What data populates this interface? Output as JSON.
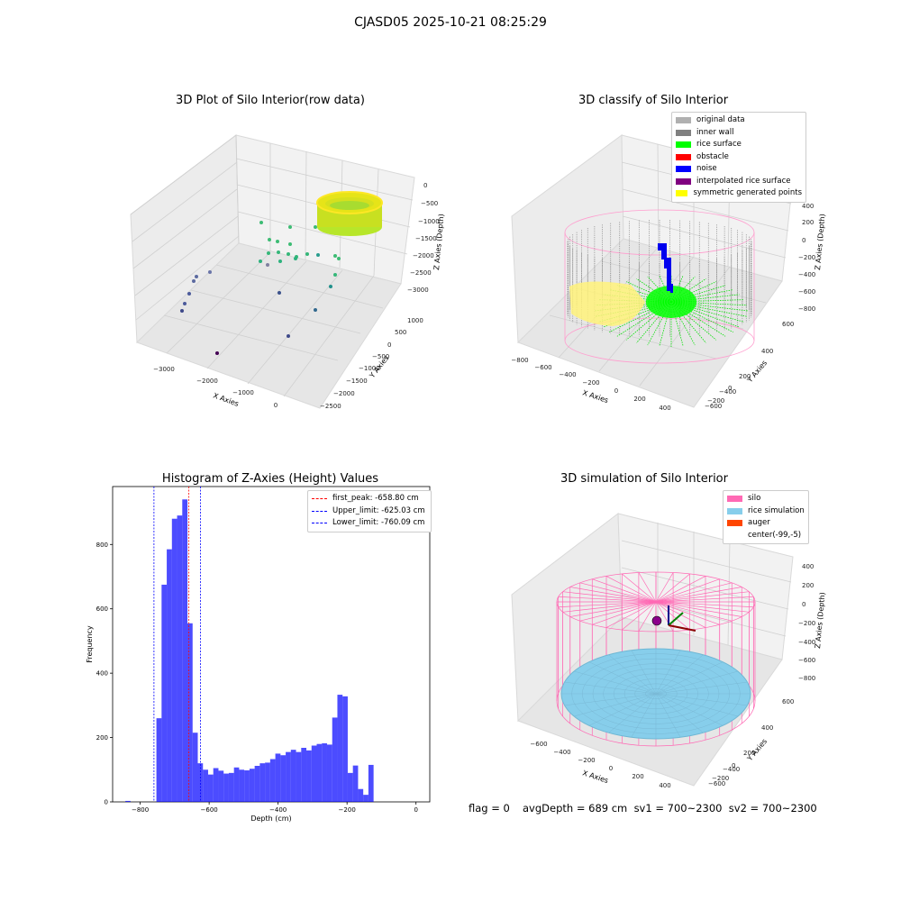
{
  "figure_title": "CJASD05 2025-10-21 08:25:29",
  "panel1": {
    "title": "3D Plot of Silo Interior(row data)",
    "xlabel": "X Axies",
    "ylabel": "Y Axies",
    "zlabel": "Z Axies (Depth)",
    "xticks": [
      "−3000",
      "−2000",
      "−1000",
      "0"
    ],
    "yticks": [
      "1000",
      "500",
      "0",
      "−500",
      "−1000",
      "−1500",
      "−2000",
      "−2500"
    ],
    "zticks": [
      "0",
      "−500",
      "−1000",
      "−1500",
      "−2000",
      "−2500",
      "−3000"
    ]
  },
  "panel2": {
    "title": "3D classify of Silo Interior",
    "xlabel": "X Axies",
    "ylabel": "Y Axies",
    "zlabel": "Z Axies (Depth)",
    "xticks": [
      "−800",
      "−600",
      "−400",
      "−200",
      "0",
      "200",
      "400"
    ],
    "yticks": [
      "600",
      "400",
      "200",
      "0",
      "−200",
      "−400",
      "−600"
    ],
    "zticks": [
      "400",
      "200",
      "0",
      "−200",
      "−400",
      "−600",
      "−800"
    ],
    "legend": [
      {
        "label": "original data",
        "color": "#b0b0b0"
      },
      {
        "label": "inner wall",
        "color": "#808080"
      },
      {
        "label": "rice surface",
        "color": "#00ff00"
      },
      {
        "label": "obstacle",
        "color": "#ff0000"
      },
      {
        "label": "noise",
        "color": "#0000ff"
      },
      {
        "label": "interpolated rice surface",
        "color": "#800080"
      },
      {
        "label": "symmetric generated points",
        "color": "#ffff00"
      }
    ]
  },
  "panel4": {
    "title": "3D simulation of Silo Interior",
    "xlabel": "X Axies",
    "ylabel": "Y Axies",
    "zlabel": "Z Axies (Depth)",
    "xticks": [
      "−600",
      "−400",
      "−200",
      "0",
      "200",
      "400"
    ],
    "yticks": [
      "600",
      "400",
      "200",
      "0",
      "−200",
      "−400",
      "−600"
    ],
    "zticks": [
      "400",
      "200",
      "0",
      "−200",
      "−400",
      "−600",
      "−800"
    ],
    "legend": [
      {
        "label": "silo",
        "color": "#ff69b4"
      },
      {
        "label": "rice simulation",
        "color": "#87ceeb"
      },
      {
        "label": "auger",
        "color": "#ff4500"
      },
      {
        "label": "center(-99,-5)",
        "color": ""
      }
    ]
  },
  "status": {
    "flag": "flag = 0",
    "avg": "avgDepth = 689 cm  sv1 = 700~2300  sv2 = 700~2300"
  },
  "chart_data": [
    {
      "type": "scatter",
      "title": "3D Plot of Silo Interior(row data)",
      "xlabel": "X Axies",
      "ylabel": "Y Axies",
      "zlabel": "Z Axies (Depth)"
    },
    {
      "type": "scatter",
      "title": "3D classify of Silo Interior",
      "xlabel": "X Axies",
      "ylabel": "Y Axies",
      "zlabel": "Z Axies (Depth)"
    },
    {
      "type": "bar",
      "title": "Histogram of Z-Axies (Height) Values",
      "xlabel": "Depth (cm)",
      "ylabel": "Frequency",
      "xlim": [
        -880,
        40
      ],
      "ylim": [
        0,
        980
      ],
      "bar_color": "#0000ff",
      "xticks": [
        -800,
        -600,
        -400,
        -200,
        0
      ],
      "yticks": [
        0,
        200,
        400,
        600,
        800
      ],
      "bin_width": 15,
      "bins": [
        {
          "x": -843,
          "value": 3
        },
        {
          "x": -753,
          "value": 260
        },
        {
          "x": -738,
          "value": 675
        },
        {
          "x": -723,
          "value": 785
        },
        {
          "x": -708,
          "value": 880
        },
        {
          "x": -693,
          "value": 890
        },
        {
          "x": -678,
          "value": 940
        },
        {
          "x": -663,
          "value": 555
        },
        {
          "x": -648,
          "value": 215
        },
        {
          "x": -633,
          "value": 120
        },
        {
          "x": -618,
          "value": 100
        },
        {
          "x": -603,
          "value": 85
        },
        {
          "x": -588,
          "value": 105
        },
        {
          "x": -573,
          "value": 97
        },
        {
          "x": -558,
          "value": 88
        },
        {
          "x": -543,
          "value": 90
        },
        {
          "x": -528,
          "value": 107
        },
        {
          "x": -513,
          "value": 100
        },
        {
          "x": -498,
          "value": 98
        },
        {
          "x": -483,
          "value": 103
        },
        {
          "x": -468,
          "value": 112
        },
        {
          "x": -453,
          "value": 120
        },
        {
          "x": -438,
          "value": 122
        },
        {
          "x": -423,
          "value": 133
        },
        {
          "x": -408,
          "value": 150
        },
        {
          "x": -393,
          "value": 145
        },
        {
          "x": -378,
          "value": 155
        },
        {
          "x": -363,
          "value": 162
        },
        {
          "x": -348,
          "value": 155
        },
        {
          "x": -333,
          "value": 168
        },
        {
          "x": -318,
          "value": 160
        },
        {
          "x": -303,
          "value": 175
        },
        {
          "x": -288,
          "value": 180
        },
        {
          "x": -273,
          "value": 182
        },
        {
          "x": -258,
          "value": 178
        },
        {
          "x": -243,
          "value": 262
        },
        {
          "x": -228,
          "value": 333
        },
        {
          "x": -213,
          "value": 328
        },
        {
          "x": -198,
          "value": 90
        },
        {
          "x": -183,
          "value": 113
        },
        {
          "x": -168,
          "value": 40
        },
        {
          "x": -153,
          "value": 22
        },
        {
          "x": -138,
          "value": 115
        }
      ],
      "vlines": [
        {
          "label": "first_peak: -658.80 cm",
          "x": -658.8,
          "color": "#ff0000"
        },
        {
          "label": "Upper_limit: -625.03 cm",
          "x": -625.03,
          "color": "#0000ff"
        },
        {
          "label": "Lower_limit: -760.09 cm",
          "x": -760.09,
          "color": "#0000ff"
        }
      ]
    },
    {
      "type": "scatter",
      "title": "3D simulation of Silo Interior",
      "xlabel": "X Axies",
      "ylabel": "Y Axies",
      "zlabel": "Z Axies (Depth)"
    }
  ]
}
